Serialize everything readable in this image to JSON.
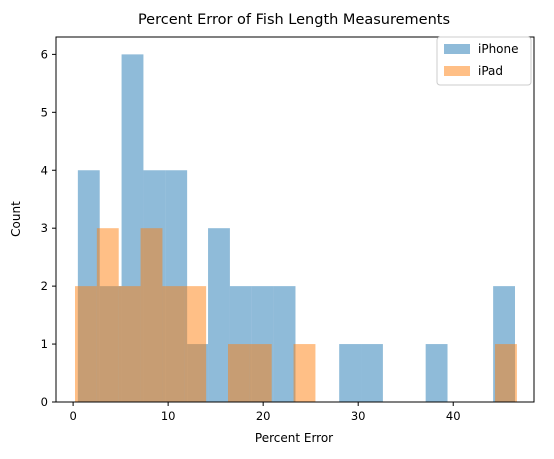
{
  "chart_data": {
    "type": "bar",
    "title": "Percent Error of Fish Length Measurements",
    "xlabel": "Percent Error",
    "ylabel": "Count",
    "xlim": [
      -1.8,
      48.5
    ],
    "ylim": [
      0,
      6.3
    ],
    "xticks": [
      0,
      10,
      20,
      30,
      40
    ],
    "yticks": [
      0,
      1,
      2,
      3,
      4,
      5,
      6
    ],
    "grid": false,
    "legend_position": "top-right",
    "series": [
      {
        "name": "iPhone",
        "color": "#1f77b4",
        "opacity": 0.5,
        "bins": [
          {
            "x0": 0.5,
            "x1": 2.8,
            "count": 4
          },
          {
            "x0": 2.8,
            "x1": 5.1,
            "count": 2
          },
          {
            "x0": 5.1,
            "x1": 7.4,
            "count": 6
          },
          {
            "x0": 7.4,
            "x1": 9.7,
            "count": 4
          },
          {
            "x0": 9.7,
            "x1": 12.0,
            "count": 4
          },
          {
            "x0": 12.0,
            "x1": 14.2,
            "count": 1
          },
          {
            "x0": 14.2,
            "x1": 16.5,
            "count": 3
          },
          {
            "x0": 16.5,
            "x1": 18.8,
            "count": 2
          },
          {
            "x0": 18.8,
            "x1": 21.1,
            "count": 2
          },
          {
            "x0": 21.1,
            "x1": 23.4,
            "count": 2
          },
          {
            "x0": 28.0,
            "x1": 30.3,
            "count": 1
          },
          {
            "x0": 30.3,
            "x1": 32.6,
            "count": 1
          },
          {
            "x0": 37.1,
            "x1": 39.4,
            "count": 1
          },
          {
            "x0": 44.2,
            "x1": 46.5,
            "count": 2
          }
        ]
      },
      {
        "name": "iPad",
        "color": "#ff7f0e",
        "opacity": 0.5,
        "bins": [
          {
            "x0": 0.2,
            "x1": 2.5,
            "count": 2
          },
          {
            "x0": 2.5,
            "x1": 4.8,
            "count": 3
          },
          {
            "x0": 4.8,
            "x1": 7.1,
            "count": 2
          },
          {
            "x0": 7.1,
            "x1": 9.4,
            "count": 3
          },
          {
            "x0": 9.4,
            "x1": 11.7,
            "count": 2
          },
          {
            "x0": 11.7,
            "x1": 14.0,
            "count": 2
          },
          {
            "x0": 16.3,
            "x1": 18.6,
            "count": 1
          },
          {
            "x0": 18.6,
            "x1": 20.9,
            "count": 1
          },
          {
            "x0": 23.2,
            "x1": 25.5,
            "count": 1
          },
          {
            "x0": 44.4,
            "x1": 46.7,
            "count": 1
          }
        ]
      }
    ]
  }
}
